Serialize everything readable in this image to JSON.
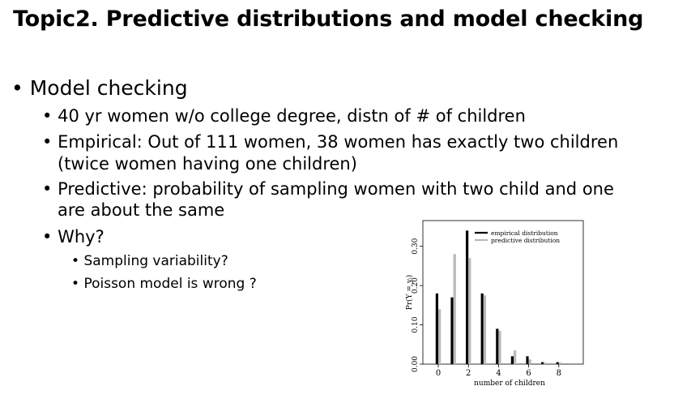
{
  "slide": {
    "title": "Topic2. Predictive distributions and model checking",
    "bullet_char": "•",
    "bullets": [
      {
        "level": 1,
        "text": "Model checking"
      },
      {
        "level": 2,
        "text": "40 yr women w/o college degree, distn of # of children"
      },
      {
        "level": 2,
        "text": "Empirical: Out of 111 women, 38 women has exactly two children",
        "cont": "(twice women having one children)"
      },
      {
        "level": 2,
        "text": "Predictive: probability of sampling women with two child and one",
        "cont": "are about the same"
      },
      {
        "level": 2,
        "text": "Why?"
      },
      {
        "level": 3,
        "text": "Sampling variability?"
      },
      {
        "level": 3,
        "text": "Poisson model is wrong ?"
      }
    ]
  },
  "chart_data": {
    "type": "bar",
    "x": [
      0,
      1,
      2,
      3,
      4,
      5,
      6,
      7,
      8
    ],
    "xticks": [
      "0",
      "2",
      "4",
      "6",
      "8"
    ],
    "yticks": [
      "0.00",
      "0.10",
      "0.20",
      "0.30"
    ],
    "ylim": [
      0,
      0.36
    ],
    "xlabel": "number of children",
    "ylabel": "Pr(Ỹ = yᵢ)",
    "legend_position": "top-right",
    "series": [
      {
        "name": "empirical distribution",
        "color": "#000000",
        "values": [
          0.18,
          0.17,
          0.34,
          0.18,
          0.09,
          0.02,
          0.02,
          0.005,
          0.005
        ]
      },
      {
        "name": "predictive distribution",
        "color": "#b8b8b8",
        "values": [
          0.14,
          0.28,
          0.27,
          0.175,
          0.085,
          0.035,
          0.012,
          0.004,
          0.004
        ]
      }
    ]
  }
}
